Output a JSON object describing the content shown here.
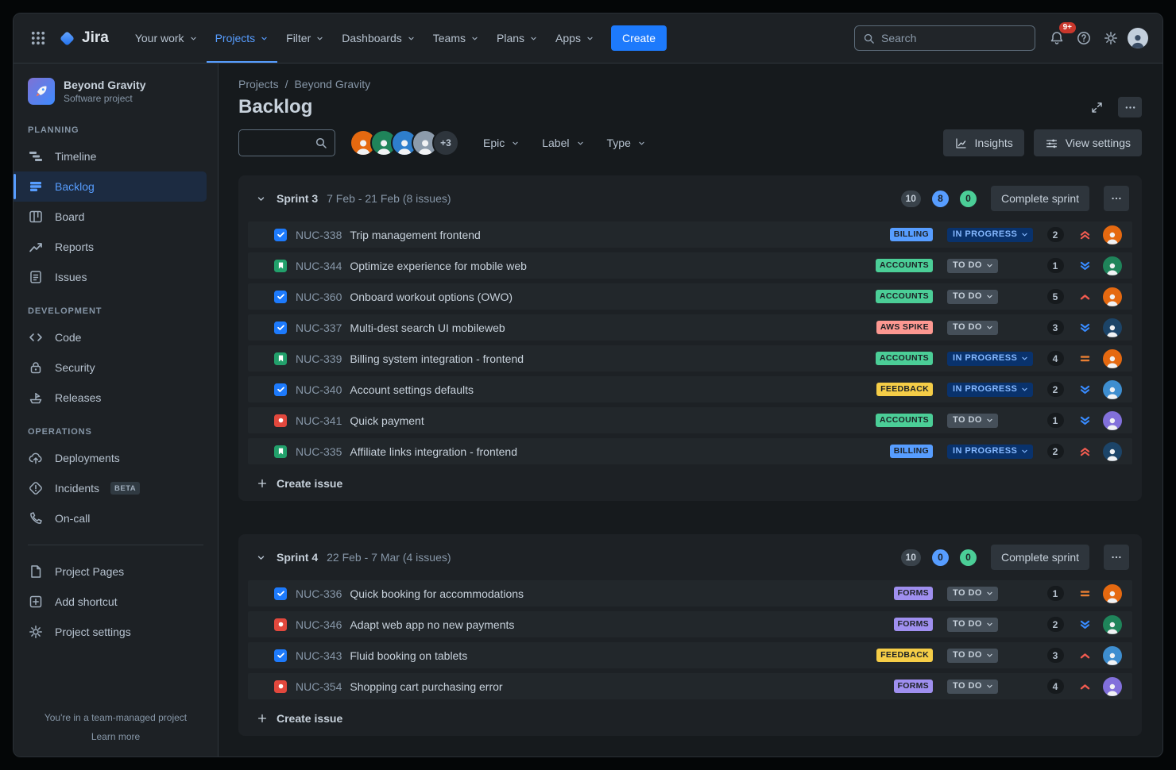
{
  "colors": {
    "accent_blue": "#579DFF",
    "create_button": "#1D7AFC",
    "notification_badge": "#C9372C",
    "types": {
      "task": "#1D7AFC",
      "story": "#22A06B",
      "bug": "#E2483D"
    },
    "labels": {
      "BILLING": "#579DFF",
      "ACCOUNTS": "#4BCE97",
      "AWS SPIKE": "#FD9891",
      "FEEDBACK": "#F5CD47",
      "FORMS": "#9F8FEF"
    },
    "status": {
      "TO DO": {
        "bg": "#454F59",
        "text": "#C7D1DB"
      },
      "IN PROGRESS": {
        "bg": "#09326C",
        "text": "#85B8FF"
      }
    },
    "priority": {
      "highest": "#F15B50",
      "high": "#F15B50",
      "medium": "#E97F33",
      "low": "#388BFF"
    },
    "count_badges": {
      "gray": {
        "bg": "#39424A",
        "text": "#C7D1DB"
      },
      "blue": {
        "bg": "#579DFF",
        "text": "#1D2125"
      },
      "green": {
        "bg": "#4BCE97",
        "text": "#1D2125"
      }
    }
  },
  "navbar": {
    "logo_text": "Jira",
    "items": [
      {
        "label": "Your work"
      },
      {
        "label": "Projects",
        "active": true
      },
      {
        "label": "Filter"
      },
      {
        "label": "Dashboards"
      },
      {
        "label": "Teams"
      },
      {
        "label": "Plans"
      },
      {
        "label": "Apps"
      }
    ],
    "create_label": "Create",
    "search_placeholder": "Search",
    "notification_count": "9+"
  },
  "sidebar": {
    "project_name": "Beyond Gravity",
    "project_type": "Software project",
    "sections": [
      {
        "title": "PLANNING",
        "items": [
          {
            "label": "Timeline",
            "icon": "timeline"
          },
          {
            "label": "Backlog",
            "icon": "backlog",
            "active": true
          },
          {
            "label": "Board",
            "icon": "board"
          },
          {
            "label": "Reports",
            "icon": "reports"
          },
          {
            "label": "Issues",
            "icon": "issues"
          }
        ]
      },
      {
        "title": "DEVELOPMENT",
        "items": [
          {
            "label": "Code",
            "icon": "code"
          },
          {
            "label": "Security",
            "icon": "security"
          },
          {
            "label": "Releases",
            "icon": "releases"
          }
        ]
      },
      {
        "title": "OPERATIONS",
        "items": [
          {
            "label": "Deployments",
            "icon": "deployments"
          },
          {
            "label": "Incidents",
            "icon": "incidents",
            "badge": "BETA"
          },
          {
            "label": "On-call",
            "icon": "oncall"
          }
        ]
      }
    ],
    "footer_items": [
      {
        "label": "Project Pages",
        "icon": "pages"
      },
      {
        "label": "Add shortcut",
        "icon": "shortcut"
      },
      {
        "label": "Project settings",
        "icon": "gear"
      }
    ],
    "footer_note": "You're in a team-managed project",
    "footer_link": "Learn more"
  },
  "main": {
    "breadcrumb": [
      "Projects",
      "Beyond Gravity"
    ],
    "breadcrumb_separator": "/",
    "title": "Backlog",
    "filters": {
      "avatars": [
        "#E56910",
        "#1F845A",
        "#2E7ECC",
        "#8C9BAB"
      ],
      "avatar_overflow": "+3",
      "dropdowns": [
        "Epic",
        "Label",
        "Type"
      ]
    },
    "actions": {
      "insights": "Insights",
      "view_settings": "View settings"
    },
    "create_issue_label": "Create issue"
  },
  "sprints": [
    {
      "name": "Sprint 3",
      "dates": "7 Feb - 21 Feb (8 issues)",
      "counts": [
        {
          "value": "10",
          "color": "gray"
        },
        {
          "value": "8",
          "color": "blue"
        },
        {
          "value": "0",
          "color": "green"
        }
      ],
      "complete_label": "Complete sprint",
      "issues": [
        {
          "key": "NUC-338",
          "title": "Trip management frontend",
          "type": "task",
          "label": "BILLING",
          "status": "IN PROGRESS",
          "estimate": "2",
          "priority": "highest",
          "avatar_color": "#E56910"
        },
        {
          "key": "NUC-344",
          "title": "Optimize experience for mobile web",
          "type": "story",
          "label": "ACCOUNTS",
          "status": "TO DO",
          "estimate": "1",
          "priority": "low",
          "avatar_color": "#1F845A"
        },
        {
          "key": "NUC-360",
          "title": "Onboard workout options (OWO)",
          "type": "task",
          "label": "ACCOUNTS",
          "status": "TO DO",
          "estimate": "5",
          "priority": "high",
          "avatar_color": "#E56910"
        },
        {
          "key": "NUC-337",
          "title": "Multi-dest search UI mobileweb",
          "type": "task",
          "label": "AWS SPIKE",
          "status": "TO DO",
          "estimate": "3",
          "priority": "low",
          "avatar_color": "#1C4468"
        },
        {
          "key": "NUC-339",
          "title": "Billing system integration - frontend",
          "type": "story",
          "label": "ACCOUNTS",
          "status": "IN PROGRESS",
          "estimate": "4",
          "priority": "medium",
          "avatar_color": "#E56910"
        },
        {
          "key": "NUC-340",
          "title": "Account settings defaults",
          "type": "task",
          "label": "FEEDBACK",
          "status": "IN PROGRESS",
          "estimate": "2",
          "priority": "low",
          "avatar_color": "#3E8ED0"
        },
        {
          "key": "NUC-341",
          "title": "Quick payment",
          "type": "bug",
          "label": "ACCOUNTS",
          "status": "TO DO",
          "estimate": "1",
          "priority": "low",
          "avatar_color": "#8270DB"
        },
        {
          "key": "NUC-335",
          "title": "Affiliate links integration - frontend",
          "type": "story",
          "label": "BILLING",
          "status": "IN PROGRESS",
          "estimate": "2",
          "priority": "highest",
          "avatar_color": "#1C4468"
        }
      ]
    },
    {
      "name": "Sprint 4",
      "dates": "22 Feb - 7 Mar (4 issues)",
      "counts": [
        {
          "value": "10",
          "color": "gray"
        },
        {
          "value": "0",
          "color": "blue"
        },
        {
          "value": "0",
          "color": "green"
        }
      ],
      "complete_label": "Complete sprint",
      "issues": [
        {
          "key": "NUC-336",
          "title": "Quick booking for accommodations",
          "type": "task",
          "label": "FORMS",
          "status": "TO DO",
          "estimate": "1",
          "priority": "medium",
          "avatar_color": "#E56910"
        },
        {
          "key": "NUC-346",
          "title": "Adapt web app no new payments",
          "type": "bug",
          "label": "FORMS",
          "status": "TO DO",
          "estimate": "2",
          "priority": "low",
          "avatar_color": "#1F845A"
        },
        {
          "key": "NUC-343",
          "title": "Fluid booking on tablets",
          "type": "task",
          "label": "FEEDBACK",
          "status": "TO DO",
          "estimate": "3",
          "priority": "high",
          "avatar_color": "#3E8ED0"
        },
        {
          "key": "NUC-354",
          "title": "Shopping cart purchasing error",
          "type": "bug",
          "label": "FORMS",
          "status": "TO DO",
          "estimate": "4",
          "priority": "high",
          "avatar_color": "#8270DB"
        }
      ]
    }
  ]
}
